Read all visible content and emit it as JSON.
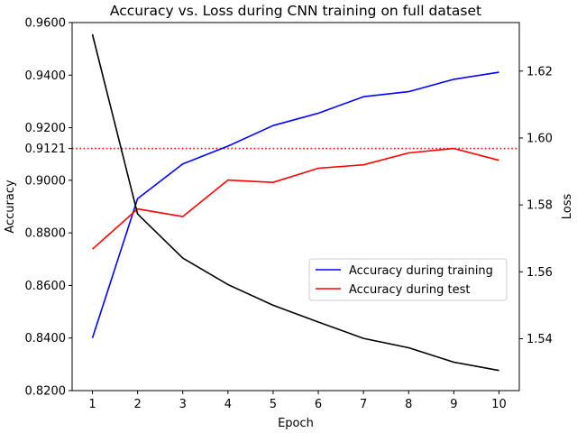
{
  "chart_data": {
    "type": "line",
    "title": "Accuracy vs. Loss during CNN training on full dataset",
    "xlabel": "Epoch",
    "ylabel": "Accuracy",
    "ylabel_right": "Loss",
    "x": [
      1,
      2,
      3,
      4,
      5,
      6,
      7,
      8,
      9,
      10
    ],
    "x_ticks": [
      "1",
      "2",
      "3",
      "4",
      "5",
      "6",
      "7",
      "8",
      "9",
      "10"
    ],
    "xlim": [
      0.55,
      10.45
    ],
    "ylim": [
      0.82,
      0.96
    ],
    "ylim_right": [
      1.5245,
      1.6345
    ],
    "y_ticks": [
      {
        "value": 0.82,
        "label": "0.8200"
      },
      {
        "value": 0.84,
        "label": "0.8400"
      },
      {
        "value": 0.86,
        "label": "0.8600"
      },
      {
        "value": 0.88,
        "label": "0.8800"
      },
      {
        "value": 0.9,
        "label": "0.9000"
      },
      {
        "value": 0.9121,
        "label": "0.9121"
      },
      {
        "value": 0.92,
        "label": "0.9200"
      },
      {
        "value": 0.94,
        "label": "0.9400"
      },
      {
        "value": 0.96,
        "label": "0.9600"
      }
    ],
    "y_ticks_right": [
      {
        "value": 1.54,
        "label": "1.54"
      },
      {
        "value": 1.56,
        "label": "1.56"
      },
      {
        "value": 1.58,
        "label": "1.58"
      },
      {
        "value": 1.6,
        "label": "1.60"
      },
      {
        "value": 1.62,
        "label": "1.62"
      }
    ],
    "series": [
      {
        "name": "Accuracy during training",
        "axis": "left",
        "color": "#0000ff",
        "values": [
          0.84,
          0.893,
          0.9062,
          0.913,
          0.9208,
          0.9255,
          0.9318,
          0.9337,
          0.9384,
          0.9411
        ]
      },
      {
        "name": "Accuracy during test",
        "axis": "left",
        "color": "#ff0000",
        "values": [
          0.8738,
          0.8891,
          0.8862,
          0.9001,
          0.8992,
          0.9046,
          0.9059,
          0.9104,
          0.9121,
          0.9076
        ]
      },
      {
        "axis": "right",
        "color": "#000000",
        "values": [
          1.631,
          1.5773,
          1.5641,
          1.5562,
          1.55,
          1.545,
          1.5401,
          1.5373,
          1.533,
          1.5305
        ]
      }
    ],
    "reference_line": {
      "axis": "left",
      "value": 0.9121,
      "color": "#ff0000",
      "style": "dotted"
    },
    "legend_position": "center-right",
    "grid": false
  }
}
